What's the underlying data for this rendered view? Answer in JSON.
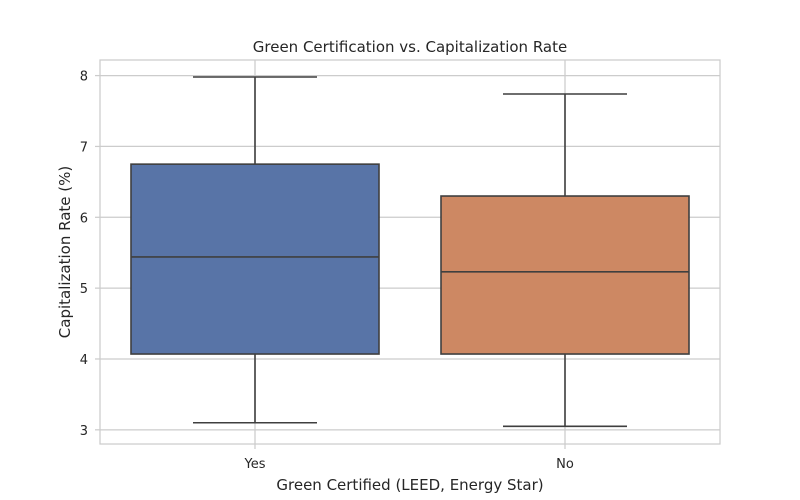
{
  "chart_data": {
    "type": "box",
    "title": "Green Certification vs. Capitalization Rate",
    "xlabel": "Green Certified (LEED, Energy Star)",
    "ylabel": "Capitalization Rate (%)",
    "ylim": [
      2.8,
      8.22
    ],
    "yticks": [
      3,
      4,
      5,
      6,
      7,
      8
    ],
    "grid": true,
    "categories": [
      "Yes",
      "No"
    ],
    "boxes": [
      {
        "category": "Yes",
        "min": 3.1,
        "q1": 4.07,
        "median": 5.44,
        "q3": 6.75,
        "max": 7.98,
        "color": "#5874a7"
      },
      {
        "category": "No",
        "min": 3.05,
        "q1": 4.07,
        "median": 5.23,
        "q3": 6.3,
        "max": 7.74,
        "color": "#cd8863"
      }
    ]
  }
}
